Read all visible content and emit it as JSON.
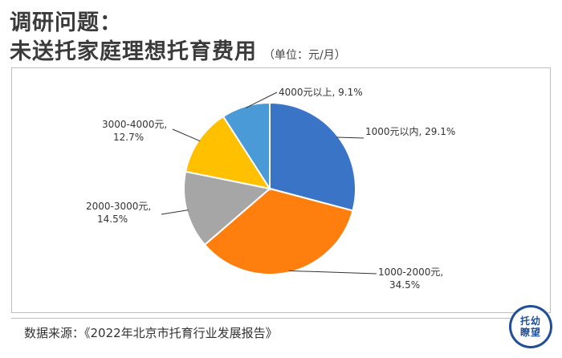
{
  "heading": {
    "line1": "调研问题：",
    "line2": "未送托家庭理想托育费用",
    "unit": "（单位：元/月）"
  },
  "chart_data": {
    "type": "pie",
    "slices": [
      {
        "name": "1000元以内",
        "value": 29.1,
        "label_value": "29.1%",
        "color": "#3a74c7"
      },
      {
        "name": "1000-2000元",
        "value": 34.5,
        "label_value": "34.5%",
        "color": "#ff7f0e"
      },
      {
        "name": "2000-3000元",
        "value": 14.5,
        "label_value": "14.5%",
        "color": "#a6a6a6"
      },
      {
        "name": "3000-4000元",
        "value": 12.7,
        "label_value": "12.7%",
        "color": "#ffc000"
      },
      {
        "name": "4000元以上",
        "value": 9.1,
        "label_value": "9.1%",
        "color": "#4a9ad8"
      }
    ],
    "start_angle_deg": 0,
    "direction": "clockwise"
  },
  "source": {
    "text": "数据来源：《2022年北京市托育行业发展报告》"
  },
  "logo": {
    "line1": "托幼",
    "line2": "瞭望",
    "color": "#1f4f99"
  }
}
